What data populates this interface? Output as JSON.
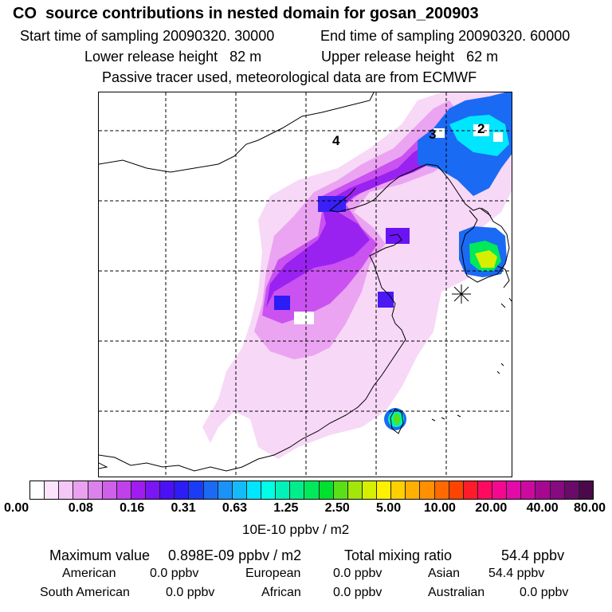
{
  "header": {
    "title": "CO  source contributions in nested domain for gosan_200903",
    "start_time": "Start time of sampling 20090320. 30000",
    "end_time": "End time of sampling 20090320. 60000",
    "lower_release": "Lower release height   82 m",
    "upper_release": "Upper release height   62 m",
    "tracer_note": "Passive tracer used, meteorological data are from ECMWF"
  },
  "map": {
    "labels": [
      "4",
      "3",
      "2"
    ],
    "receptor_marker": "receptor-star-icon"
  },
  "legend": {
    "ticks": [
      "0.00",
      "0.08",
      "0.16",
      "0.31",
      "0.63",
      "1.25",
      "2.50",
      "5.00",
      "10.00",
      "20.00",
      "40.00",
      "80.00"
    ],
    "units": "10E-10 ppbv / m2",
    "colors": [
      "#ffffff",
      "#fbe3fb",
      "#f4c7f6",
      "#eaa2f0",
      "#dd82ec",
      "#cf60ea",
      "#c040ec",
      "#a01cf0",
      "#7a16f4",
      "#4c10f6",
      "#2c1cf6",
      "#1b3cf6",
      "#1b6af4",
      "#1a92f8",
      "#13bcf8",
      "#00e6ff",
      "#00ffe6",
      "#00f3b8",
      "#00ee8a",
      "#00e95a",
      "#00e02e",
      "#5ae016",
      "#a2e60a",
      "#d6ee00",
      "#fff000",
      "#ffd000",
      "#ffb000",
      "#ff9000",
      "#ff6a00",
      "#ff4400",
      "#ff1c28",
      "#ff0a60",
      "#f40890",
      "#e20aa8",
      "#cc0aa0",
      "#a60890",
      "#860a80",
      "#6a0a6a",
      "#4a0a4a"
    ]
  },
  "stats": {
    "max_label": "Maximum value",
    "max_value": "0.898E-09 ppbv / m2",
    "total_label": "Total mixing ratio",
    "total_value": "54.4 ppbv",
    "regions": [
      {
        "name": "American",
        "value": "0.0 ppbv"
      },
      {
        "name": "European",
        "value": "0.0 ppbv"
      },
      {
        "name": "Asian",
        "value": "54.4 ppbv"
      },
      {
        "name": "South American",
        "value": "0.0 ppbv"
      },
      {
        "name": "African",
        "value": "0.0 ppbv"
      },
      {
        "name": "Australian",
        "value": "0.0 ppbv"
      }
    ]
  }
}
